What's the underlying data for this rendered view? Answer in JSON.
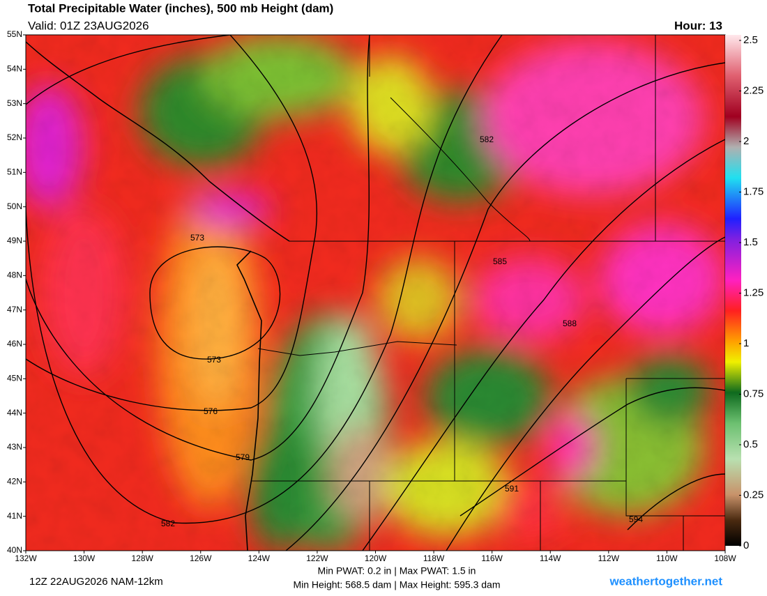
{
  "header": {
    "title": "Total Precipitable Water (inches), 500 mb Height (dam)",
    "valid": "Valid: 01Z 23AUG2026",
    "hour": "Hour: 13"
  },
  "map": {
    "lat_labels": [
      "55N",
      "54N",
      "53N",
      "52N",
      "51N",
      "50N",
      "49N",
      "48N",
      "47N",
      "46N",
      "45N",
      "44N",
      "43N",
      "42N",
      "41N",
      "40N"
    ],
    "lon_labels": [
      "132W",
      "130W",
      "128W",
      "126W",
      "124W",
      "122W",
      "120W",
      "118W",
      "116W",
      "114W",
      "112W",
      "110W",
      "108W"
    ],
    "contour_labels": [
      "573",
      "573",
      "576",
      "579",
      "582",
      "582",
      "585",
      "588",
      "591",
      "594"
    ]
  },
  "colorbar": {
    "lim": [
      0,
      2.5
    ],
    "ticks": [
      0,
      0.25,
      0.5,
      0.75,
      1,
      1.25,
      1.5,
      1.75,
      2,
      2.25,
      2.5
    ]
  },
  "footer": {
    "run": "12Z 22AUG2026 NAM-12km",
    "pwat": "Min PWAT:   0.2 in | Max PWAT:   1.5 in",
    "height": "Min Height: 568.5 dam | Max Height: 595.3 dam",
    "site": "weathertogether.net"
  }
}
